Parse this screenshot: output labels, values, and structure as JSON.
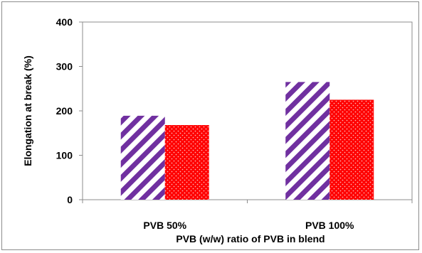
{
  "chart_data": {
    "type": "bar",
    "title": "",
    "xlabel": "PVB (w/w) ratio of PVB in blend",
    "ylabel": "Elongation at break  (%)",
    "categories": [
      "PVB 50%",
      "PVB 100%"
    ],
    "series": [
      {
        "values": [
          189,
          265
        ],
        "color": "#7030a0",
        "pattern": "diagonal-stripes"
      },
      {
        "values": [
          168,
          225
        ],
        "color": "#ff0000",
        "pattern": "dotted"
      }
    ],
    "ylim": [
      0,
      400
    ],
    "yticks": [
      0,
      100,
      200,
      300,
      400
    ],
    "grid": false,
    "legend": "none"
  }
}
